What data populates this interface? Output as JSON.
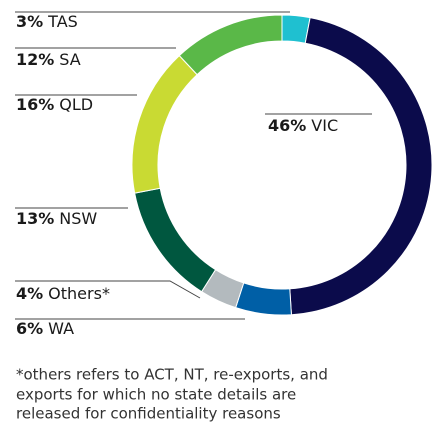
{
  "chart_data": {
    "type": "donut",
    "categories": [
      "TAS",
      "VIC",
      "WA",
      "Others*",
      "NSW",
      "QLD",
      "SA"
    ],
    "values": [
      3,
      46,
      6,
      4,
      13,
      16,
      12
    ],
    "value_labels": [
      "3%",
      "46%",
      "6%",
      "4%",
      "13%",
      "16%",
      "12%"
    ],
    "colors": [
      "#1fc0d0",
      "#0b0b4b",
      "#005fa6",
      "#b3babe",
      "#00573f",
      "#c9da33",
      "#5ab848"
    ],
    "annotations": [
      "*others refers to ACT, NT, re-exports, and",
      "exports for which no state details are",
      "released for confidentiality reasons"
    ]
  }
}
